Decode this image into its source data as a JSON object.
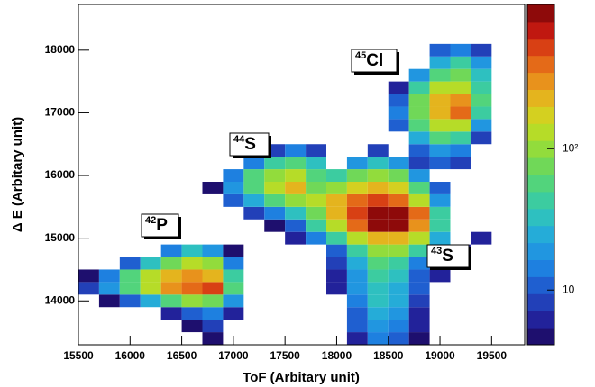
{
  "chart_data": {
    "type": "hist2d",
    "x_label": "ToF (Arbitary unit)",
    "y_label": "Δ E (Arbitary unit)",
    "xlim": [
      15500,
      19820
    ],
    "ylim": [
      13300,
      18730
    ],
    "xticks": [
      15500,
      16000,
      16500,
      17000,
      17500,
      18000,
      18500,
      19000,
      19500
    ],
    "yticks": [
      14000,
      15000,
      16000,
      17000,
      18000
    ],
    "zlim": [
      4.1,
      1050
    ],
    "zlog": true,
    "zticks": [
      {
        "value": 10,
        "label": "10"
      },
      {
        "value": 100,
        "label": "10²"
      }
    ],
    "xbins": [
      15500,
      15700,
      15900,
      16100,
      16300,
      16500,
      16700,
      16900,
      17100,
      17300,
      17500,
      17700,
      17900,
      18100,
      18300,
      18500,
      18700,
      18900,
      19100,
      19300,
      19500,
      19700
    ],
    "ybins": [
      13300,
      13500,
      13700,
      13900,
      14100,
      14300,
      14500,
      14700,
      14900,
      15100,
      15300,
      15500,
      15700,
      15900,
      16100,
      16300,
      16500,
      16700,
      16900,
      17100,
      17300,
      17500,
      17700,
      17900,
      18100
    ],
    "z": [
      [
        null,
        null,
        null,
        null,
        null,
        null,
        5,
        null,
        null,
        null,
        null,
        null,
        null,
        6,
        15,
        10,
        5,
        null,
        null,
        null,
        null
      ],
      [
        null,
        null,
        null,
        null,
        null,
        5,
        8,
        null,
        null,
        null,
        null,
        null,
        null,
        10,
        20,
        15,
        6,
        null,
        null,
        null,
        null
      ],
      [
        null,
        null,
        null,
        null,
        6,
        12,
        15,
        6,
        null,
        null,
        null,
        null,
        null,
        12,
        25,
        18,
        6,
        null,
        null,
        null,
        null
      ],
      [
        null,
        5,
        10,
        25,
        60,
        90,
        80,
        20,
        null,
        null,
        null,
        null,
        null,
        15,
        30,
        22,
        8,
        null,
        null,
        null,
        null
      ],
      [
        8,
        20,
        60,
        150,
        300,
        450,
        500,
        60,
        null,
        null,
        null,
        null,
        6,
        18,
        35,
        25,
        10,
        null,
        null,
        null,
        null
      ],
      [
        5,
        15,
        50,
        120,
        220,
        300,
        250,
        40,
        null,
        null,
        null,
        null,
        6,
        20,
        45,
        30,
        10,
        6,
        null,
        null,
        null
      ],
      [
        null,
        null,
        10,
        30,
        80,
        120,
        90,
        15,
        null,
        null,
        null,
        null,
        8,
        25,
        60,
        45,
        15,
        8,
        null,
        null,
        null
      ],
      [
        null,
        null,
        null,
        null,
        15,
        30,
        20,
        5,
        null,
        null,
        null,
        null,
        10,
        40,
        100,
        90,
        40,
        12,
        6,
        null,
        null
      ],
      [
        null,
        null,
        null,
        null,
        null,
        null,
        null,
        null,
        null,
        null,
        6,
        15,
        40,
        120,
        250,
        250,
        120,
        25,
        null,
        6,
        null
      ],
      [
        null,
        null,
        null,
        null,
        null,
        null,
        null,
        null,
        null,
        5,
        12,
        40,
        150,
        400,
        800,
        900,
        300,
        40,
        null,
        null,
        null
      ],
      [
        null,
        null,
        null,
        null,
        null,
        null,
        null,
        null,
        8,
        15,
        30,
        80,
        250,
        500,
        1000,
        950,
        350,
        40,
        null,
        null,
        null
      ],
      [
        null,
        null,
        null,
        null,
        null,
        null,
        null,
        10,
        25,
        60,
        100,
        120,
        200,
        350,
        500,
        400,
        150,
        20,
        null,
        null,
        null
      ],
      [
        null,
        null,
        null,
        null,
        null,
        null,
        5,
        20,
        60,
        120,
        200,
        80,
        100,
        180,
        220,
        160,
        50,
        10,
        null,
        null,
        null
      ],
      [
        null,
        null,
        null,
        null,
        null,
        null,
        null,
        15,
        50,
        100,
        150,
        60,
        40,
        80,
        100,
        70,
        20,
        null,
        null,
        null,
        null
      ],
      [
        null,
        null,
        null,
        null,
        null,
        null,
        null,
        null,
        15,
        40,
        60,
        30,
        null,
        20,
        30,
        20,
        8,
        10,
        8,
        null,
        null
      ],
      [
        null,
        null,
        null,
        null,
        null,
        null,
        null,
        null,
        null,
        8,
        15,
        8,
        null,
        null,
        8,
        null,
        10,
        20,
        15,
        null,
        null
      ],
      [
        null,
        null,
        null,
        null,
        null,
        null,
        null,
        null,
        null,
        null,
        null,
        null,
        null,
        null,
        null,
        null,
        25,
        60,
        40,
        8,
        null
      ],
      [
        null,
        null,
        null,
        null,
        null,
        null,
        null,
        null,
        null,
        null,
        null,
        null,
        null,
        null,
        null,
        10,
        60,
        150,
        150,
        20,
        null
      ],
      [
        null,
        null,
        null,
        null,
        null,
        null,
        null,
        null,
        null,
        null,
        null,
        null,
        null,
        null,
        null,
        15,
        80,
        250,
        400,
        40,
        null
      ],
      [
        null,
        null,
        null,
        null,
        null,
        null,
        null,
        null,
        null,
        null,
        null,
        null,
        null,
        null,
        null,
        12,
        70,
        200,
        300,
        50,
        null
      ],
      [
        null,
        null,
        null,
        null,
        null,
        null,
        null,
        null,
        null,
        null,
        null,
        null,
        null,
        null,
        null,
        6,
        40,
        120,
        150,
        40,
        null
      ],
      [
        null,
        null,
        null,
        null,
        null,
        null,
        null,
        null,
        null,
        null,
        null,
        null,
        null,
        null,
        null,
        null,
        20,
        60,
        80,
        30,
        null
      ],
      [
        null,
        null,
        null,
        null,
        null,
        null,
        null,
        null,
        null,
        null,
        null,
        null,
        null,
        null,
        null,
        null,
        null,
        25,
        40,
        20,
        null
      ],
      [
        null,
        null,
        null,
        null,
        null,
        null,
        null,
        null,
        null,
        null,
        null,
        null,
        null,
        null,
        null,
        null,
        null,
        10,
        15,
        8,
        null
      ]
    ],
    "annotations": [
      {
        "mass": "45",
        "element": "Cl"
      },
      {
        "mass": "44",
        "element": "S"
      },
      {
        "mass": "42",
        "element": "P"
      },
      {
        "mass": "43",
        "element": "S"
      }
    ]
  }
}
